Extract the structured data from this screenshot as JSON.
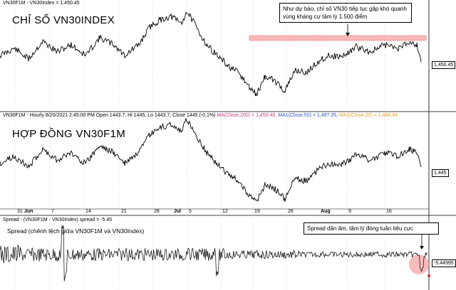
{
  "panel1": {
    "header": "VN30F1M - VN30Index = 1,450.45",
    "title": "CHỈ SỐ VN30INDEX",
    "price_label": "1,450.45",
    "note": "Như dự báo, chỉ số VN30 tiếp tục gặp khó quanh vùng kháng cự tâm lý 1.500 điểm"
  },
  "panel2": {
    "header_main": "VN30F1M - Hourly 8/20/2021 2:45:00 PM Open 1443.7, Hi 1445, Lo 1443.7, Close 1445 (-0.1%)",
    "ma200": "MA(Close,200) = 1,450.40,",
    "ma50": "MA1(Close,50) = 1,487.35,",
    "ma20": "MA2(Close,20) = 1,484.94",
    "title": "HỢP ĐỒNG VN30F1M",
    "price_label": "1,445"
  },
  "panel3": {
    "header": "Spread - (VN30F1M - VN30Index) spread = -5.45",
    "subtitle": "Spread (chênh lệch giữa VN30F1M và VN30Index)",
    "price_label": "-5.44995",
    "note": "Spread dần âm, tâm lý đóng tuần tiêu cực"
  },
  "x_axis": {
    "labels": [
      "31",
      "Jun",
      "7",
      "14",
      "21",
      "28",
      "Jul",
      "5",
      "12",
      "19",
      "26",
      "Aug",
      "9",
      "16"
    ]
  },
  "colors": {
    "ma200": "#c04080",
    "ma50": "#3050c0",
    "ma20": "#e0a020",
    "resistance": "#f08080",
    "circle": "#f4a0a0"
  }
}
